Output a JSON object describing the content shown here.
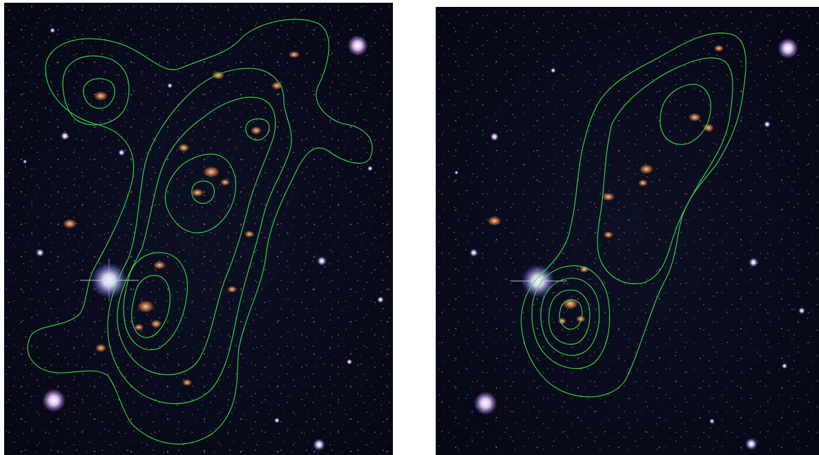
{
  "figure": {
    "panels": [
      {
        "id": "left",
        "content": "deep-field-image",
        "overlay": "number-density-contours",
        "contour_levels": 5
      },
      {
        "id": "right",
        "content": "deep-field-image",
        "overlay": "number-density-contours",
        "contour_levels": 5
      }
    ],
    "colors": {
      "sky_background": "#07091a",
      "contour": "#39e04a",
      "star_white": "#ffffff",
      "galaxy_orange": "#c8703a",
      "galaxy_blue": "#8fa0ff"
    }
  }
}
